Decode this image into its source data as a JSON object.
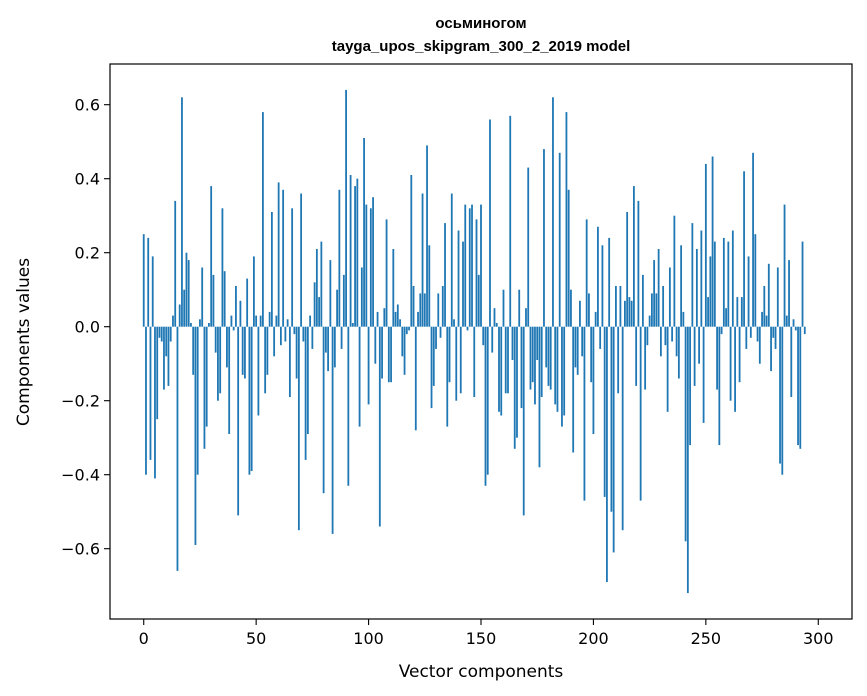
{
  "chart_data": {
    "type": "bar",
    "title": "осьминогом",
    "subtitle": "tayga_upos_skipgram_300_2_2019 model",
    "xlabel": "Vector components",
    "ylabel": "Components values",
    "xlim": [
      -15,
      315
    ],
    "ylim": [
      -0.79,
      0.71
    ],
    "xticks": [
      0,
      50,
      100,
      150,
      200,
      250,
      300
    ],
    "xtick_labels": [
      "0",
      "50",
      "100",
      "150",
      "200",
      "250",
      "300"
    ],
    "yticks": [
      -0.6,
      -0.4,
      -0.2,
      0.0,
      0.2,
      0.4,
      0.6
    ],
    "ytick_labels": [
      "−0.6",
      "−0.4",
      "−0.2",
      "0.0",
      "0.2",
      "0.4",
      "0.6"
    ],
    "grid": false,
    "bar_color": "#1f77b4",
    "x": "0..299",
    "values": [
      0.25,
      -0.4,
      0.24,
      -0.36,
      0.19,
      -0.41,
      -0.25,
      -0.03,
      -0.04,
      -0.17,
      -0.08,
      -0.16,
      -0.04,
      0.03,
      0.34,
      -0.66,
      0.06,
      0.62,
      0.1,
      0.2,
      0.18,
      0.01,
      -0.13,
      -0.59,
      -0.4,
      0.02,
      0.16,
      -0.33,
      -0.27,
      0.01,
      0.38,
      0.14,
      -0.07,
      -0.2,
      -0.18,
      0.32,
      0.15,
      -0.11,
      -0.29,
      0.03,
      -0.01,
      0.11,
      -0.51,
      0.07,
      -0.13,
      -0.14,
      0.13,
      -0.4,
      -0.39,
      0.19,
      0.03,
      -0.24,
      0.03,
      0.58,
      -0.18,
      -0.13,
      0.04,
      0.31,
      -0.08,
      0.03,
      0.39,
      -0.05,
      0.37,
      -0.04,
      0.02,
      -0.19,
      0.32,
      -0.02,
      -0.14,
      -0.55,
      0.36,
      -0.04,
      -0.36,
      -0.29,
      0.03,
      -0.06,
      0.12,
      0.21,
      0.08,
      0.23,
      -0.45,
      -0.07,
      -0.12,
      0.18,
      -0.56,
      -0.11,
      0.1,
      0.37,
      -0.06,
      0.14,
      0.64,
      -0.43,
      0.41,
      0.01,
      0.38,
      0.4,
      -0.27,
      0.16,
      0.51,
      0.33,
      -0.21,
      0.32,
      0.35,
      -0.1,
      0.04,
      -0.54,
      -0.14,
      0.05,
      0.29,
      -0.15,
      -0.15,
      0.21,
      0.04,
      0.06,
      0.02,
      -0.08,
      -0.13,
      -0.02,
      -0.01,
      0.41,
      0.11,
      -0.28,
      0.04,
      0.09,
      0.36,
      0.09,
      0.49,
      0.22,
      -0.22,
      -0.16,
      -0.06,
      0.09,
      -0.03,
      0.11,
      0.28,
      -0.27,
      -0.15,
      0.36,
      0.02,
      -0.2,
      0.26,
      -0.18,
      0.23,
      0.33,
      -0.01,
      0.32,
      0.33,
      -0.19,
      0.29,
      0.14,
      0.33,
      -0.05,
      -0.43,
      -0.4,
      0.56,
      -0.07,
      0.05,
      0.01,
      -0.23,
      -0.24,
      0.1,
      -0.18,
      -0.18,
      0.57,
      -0.09,
      -0.33,
      -0.3,
      0.1,
      -0.22,
      -0.51,
      0.05,
      0.43,
      -0.17,
      -0.15,
      -0.21,
      -0.09,
      -0.38,
      -0.19,
      0.48,
      -0.11,
      -0.16,
      -0.17,
      0.62,
      -0.21,
      -0.23,
      0.47,
      -0.27,
      -0.24,
      0.58,
      0.37,
      0.1,
      -0.34,
      -0.11,
      -0.13,
      0.07,
      -0.08,
      -0.47,
      0.29,
      0.09,
      -0.15,
      -0.29,
      0.04,
      0.27,
      -0.06,
      0.22,
      -0.46,
      -0.69,
      0.24,
      -0.5,
      -0.61,
      0.11,
      -0.18,
      0.11,
      -0.55,
      0.07,
      0.31,
      0.08,
      0.07,
      0.38,
      -0.16,
      0.34,
      -0.47,
      0.14,
      -0.17,
      -0.05,
      0.03,
      0.09,
      0.18,
      0.09,
      0.21,
      -0.08,
      0.11,
      -0.05,
      -0.23,
      0.16,
      -0.04,
      0.3,
      -0.08,
      -0.14,
      0.22,
      0.04,
      -0.58,
      -0.72,
      -0.32,
      0.28,
      -0.16,
      0.21,
      -0.1,
      0.26,
      -0.26,
      0.44,
      0.08,
      0.19,
      0.46,
      0.23,
      -0.17,
      -0.32,
      -0.02,
      0.24,
      0.05,
      0.23,
      -0.2,
      0.26,
      -0.23,
      0.08,
      -0.15,
      0.08,
      0.42,
      -0.06,
      0.19,
      -0.03,
      0.47,
      0.25,
      -0.04,
      -0.1,
      0.04,
      0.11,
      0.03,
      0.17,
      -0.12,
      -0.03,
      -0.06,
      0.16,
      -0.37,
      -0.4,
      0.33,
      0.03,
      0.18,
      -0.19,
      0.02,
      -0.01,
      -0.32,
      -0.33,
      0.23,
      -0.02
    ]
  }
}
